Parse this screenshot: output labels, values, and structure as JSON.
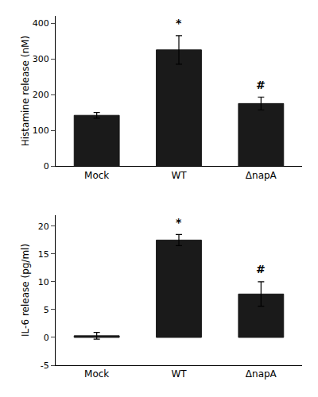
{
  "chart_data": [
    {
      "type": "bar",
      "categories": [
        "Mock",
        "WT",
        "ΔnapA"
      ],
      "values": [
        142,
        325,
        175
      ],
      "errors": [
        8,
        40,
        18
      ],
      "ylabel": "Histamine release (nM)",
      "ylim": [
        0,
        420
      ],
      "yticks": [
        0,
        100,
        200,
        300,
        400
      ],
      "annotations": [
        {
          "category": "WT",
          "text": "*"
        },
        {
          "category": "ΔnapA",
          "text": "#"
        }
      ],
      "color": "#1a1a1a",
      "grid": false
    },
    {
      "type": "bar",
      "categories": [
        "Mock",
        "WT",
        "ΔnapA"
      ],
      "values": [
        0.3,
        17.5,
        7.8
      ],
      "errors": [
        0.6,
        1.0,
        2.2
      ],
      "ylabel": "IL-6 release (pg/ml)",
      "ylim": [
        -5,
        22
      ],
      "yticks": [
        -5,
        0,
        5,
        10,
        15,
        20
      ],
      "annotations": [
        {
          "category": "WT",
          "text": "*"
        },
        {
          "category": "ΔnapA",
          "text": "#"
        }
      ],
      "color": "#1a1a1a",
      "grid": false
    }
  ]
}
